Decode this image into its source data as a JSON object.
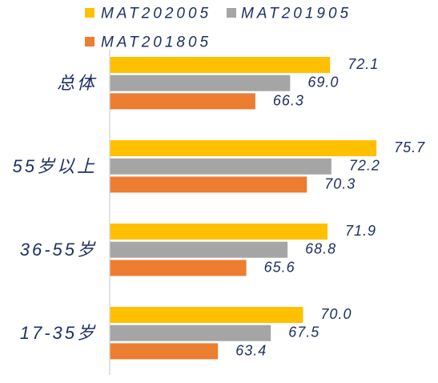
{
  "chart_data": {
    "type": "bar",
    "orientation": "horizontal",
    "categories": [
      "总体",
      "55岁以上",
      "36-55岁",
      "17-35岁"
    ],
    "series": [
      {
        "name": "MAT202005",
        "color": "#FFC000",
        "values": [
          72.1,
          75.7,
          71.9,
          70.0
        ],
        "labels": [
          "72.1",
          "75.7",
          "71.9",
          "70.0"
        ]
      },
      {
        "name": "MAT201905",
        "color": "#A5A5A5",
        "values": [
          69.0,
          72.2,
          68.8,
          67.5
        ],
        "labels": [
          "69.0",
          "72.2",
          "68.8",
          "67.5"
        ]
      },
      {
        "name": "MAT201805",
        "color": "#ED7D31",
        "values": [
          66.3,
          70.3,
          65.6,
          63.4
        ],
        "labels": [
          "66.3",
          "70.3",
          "65.6",
          "63.4"
        ]
      }
    ],
    "xlim": [
      55,
      76
    ],
    "grid": false,
    "legend": "top",
    "colors": {
      "text": "#1F3060",
      "axis": "#D0D0D0"
    }
  }
}
